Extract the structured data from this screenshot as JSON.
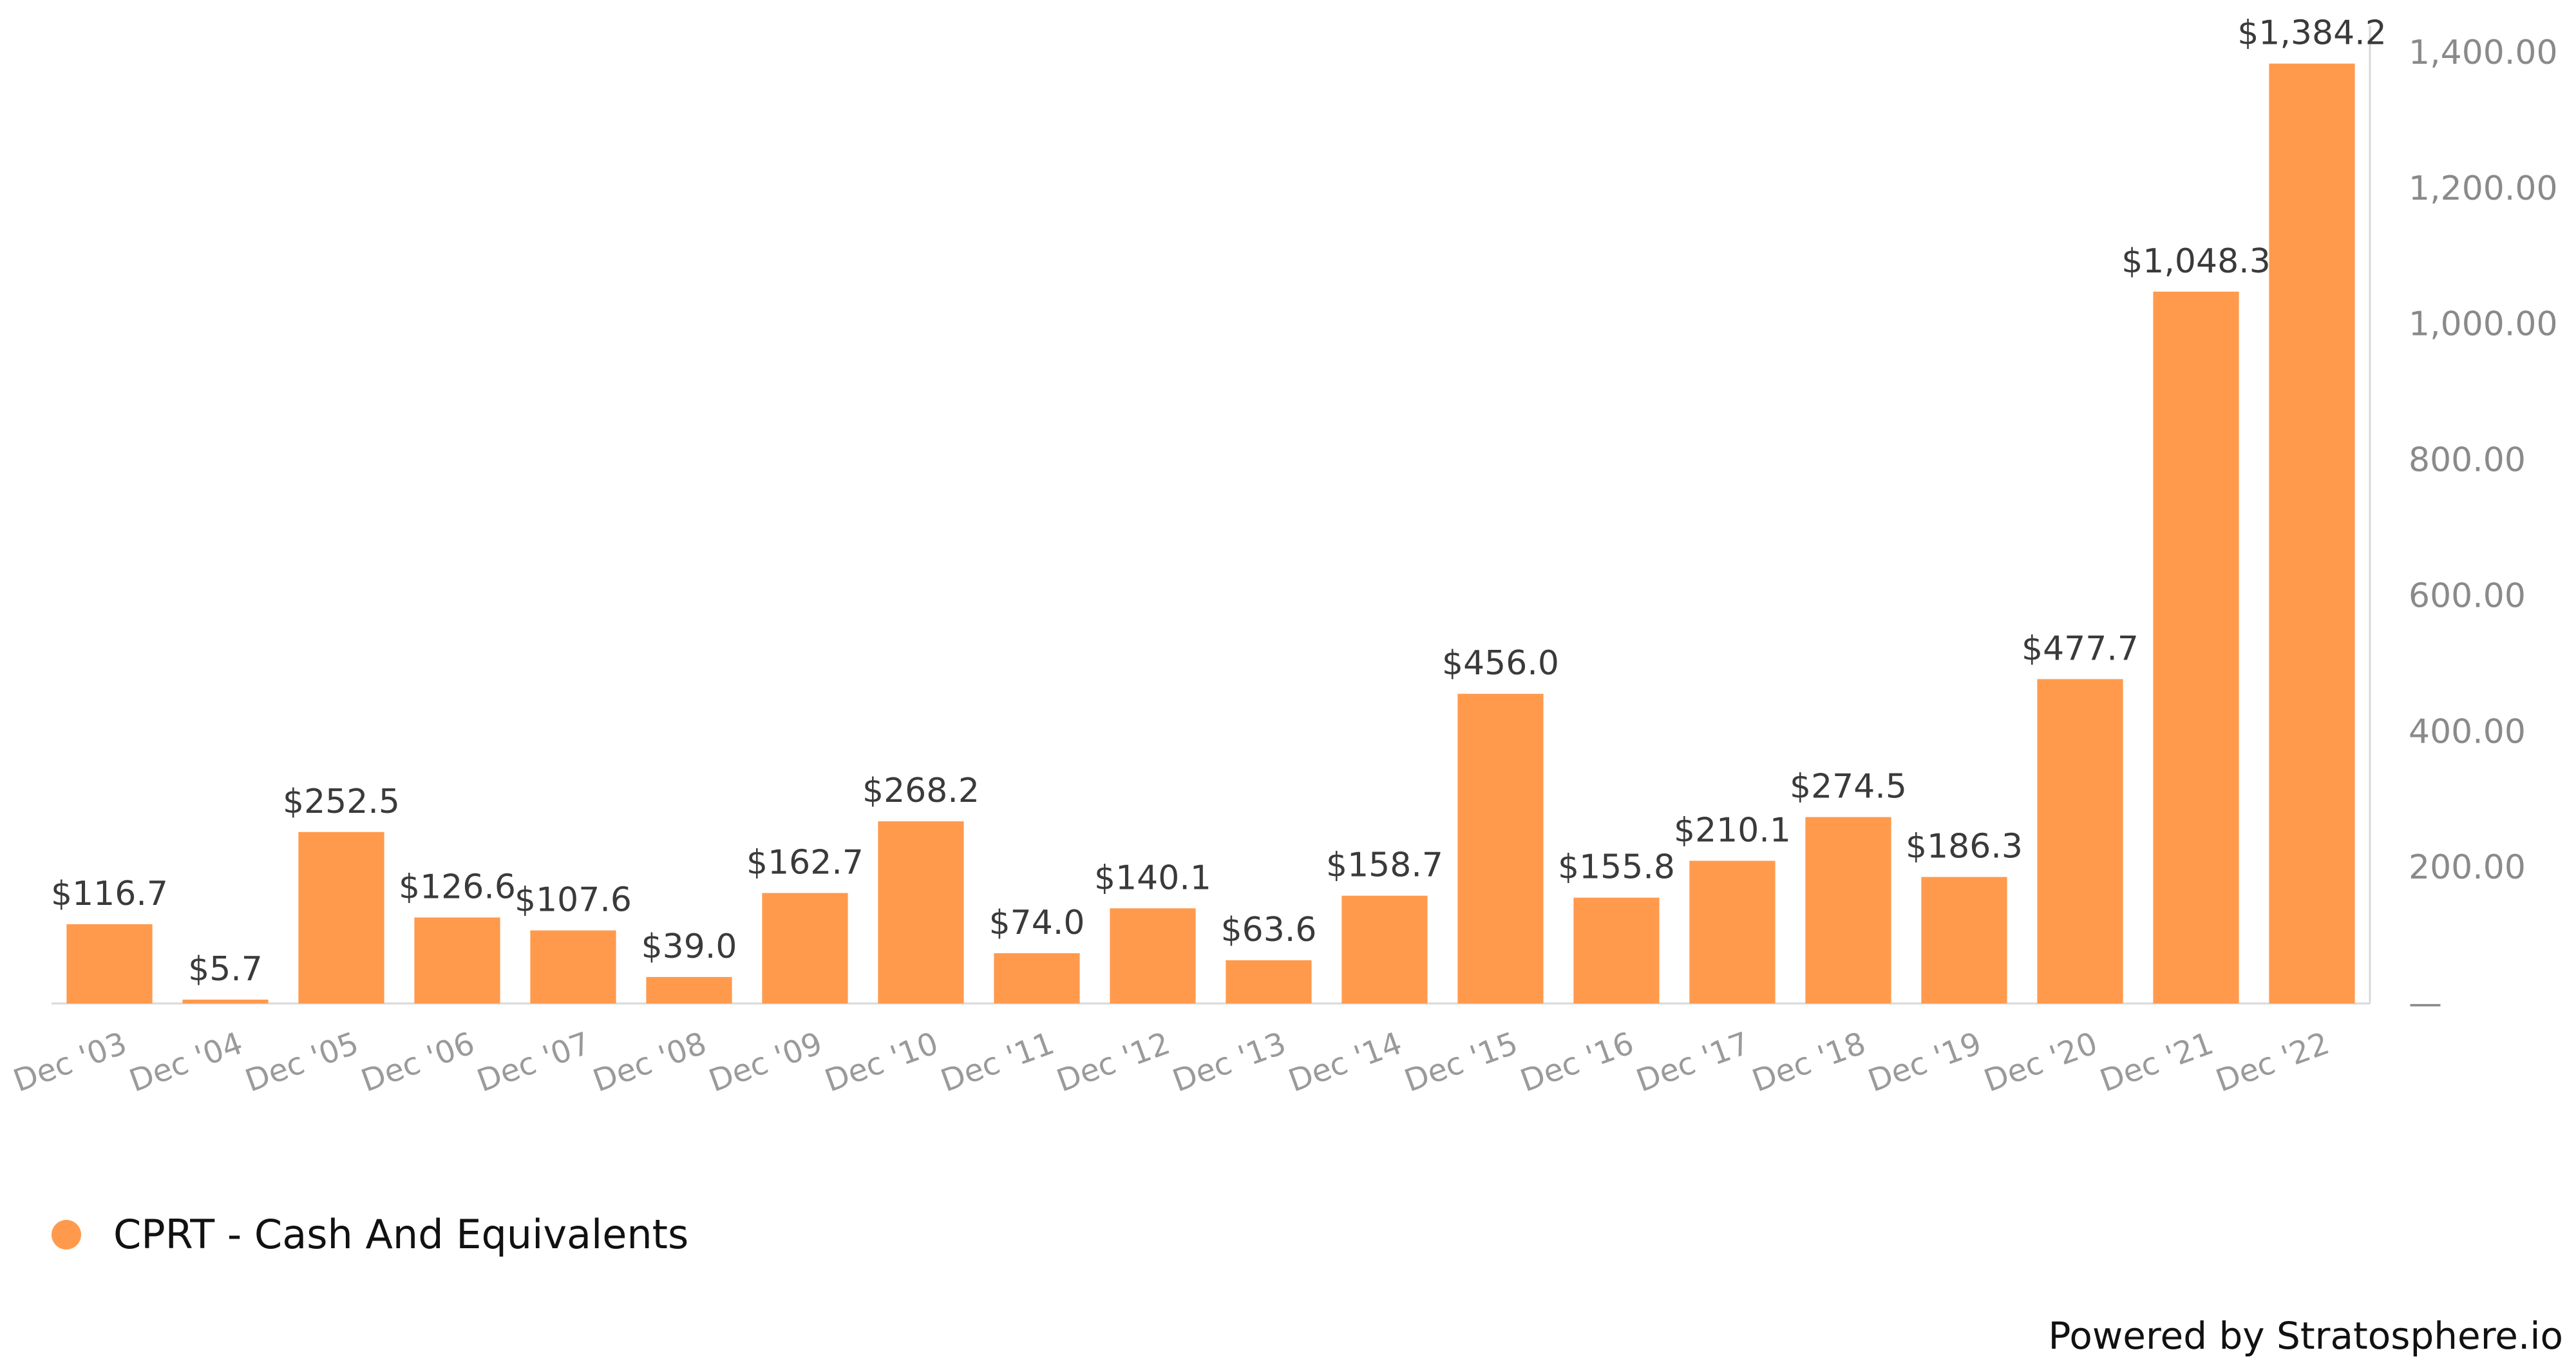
{
  "chart_data": {
    "type": "bar",
    "categories": [
      "Dec '03",
      "Dec '04",
      "Dec '05",
      "Dec '06",
      "Dec '07",
      "Dec '08",
      "Dec '09",
      "Dec '10",
      "Dec '11",
      "Dec '12",
      "Dec '13",
      "Dec '14",
      "Dec '15",
      "Dec '16",
      "Dec '17",
      "Dec '18",
      "Dec '19",
      "Dec '20",
      "Dec '21",
      "Dec '22"
    ],
    "series": [
      {
        "name": "CPRT - Cash And Equivalents",
        "values": [
          116.7,
          5.7,
          252.5,
          126.6,
          107.6,
          39.0,
          162.7,
          268.2,
          74.0,
          140.1,
          63.6,
          158.7,
          456.0,
          155.8,
          210.1,
          274.5,
          186.3,
          477.7,
          1048.3,
          1384.2
        ],
        "data_labels": [
          "$116.7",
          "$5.7",
          "$252.5",
          "$126.6",
          "$107.6",
          "$39.0",
          "$162.7",
          "$268.2",
          "$74.0",
          "$140.1",
          "$63.6",
          "$158.7",
          "$456.0",
          "$155.8",
          "$210.1",
          "$274.5",
          "$186.3",
          "$477.7",
          "$1,048.3",
          "$1,384.2"
        ]
      }
    ],
    "y_axis": {
      "position": "right",
      "ticks": [
        0,
        200,
        400,
        600,
        800,
        1000,
        1200,
        1400
      ],
      "tick_labels": [
        "—",
        "200.00",
        "400.00",
        "600.00",
        "800.00",
        "1,000.00",
        "1,200.00",
        "1,400.00"
      ]
    },
    "ylim": [
      0,
      1400
    ],
    "grid": false,
    "legend_position": "bottom-left",
    "bar_color": "#FF9A4D"
  },
  "legend": {
    "label": "CPRT - Cash And Equivalents",
    "color": "#FF9A4D"
  },
  "footer": {
    "text": "Powered by Stratosphere.io"
  }
}
